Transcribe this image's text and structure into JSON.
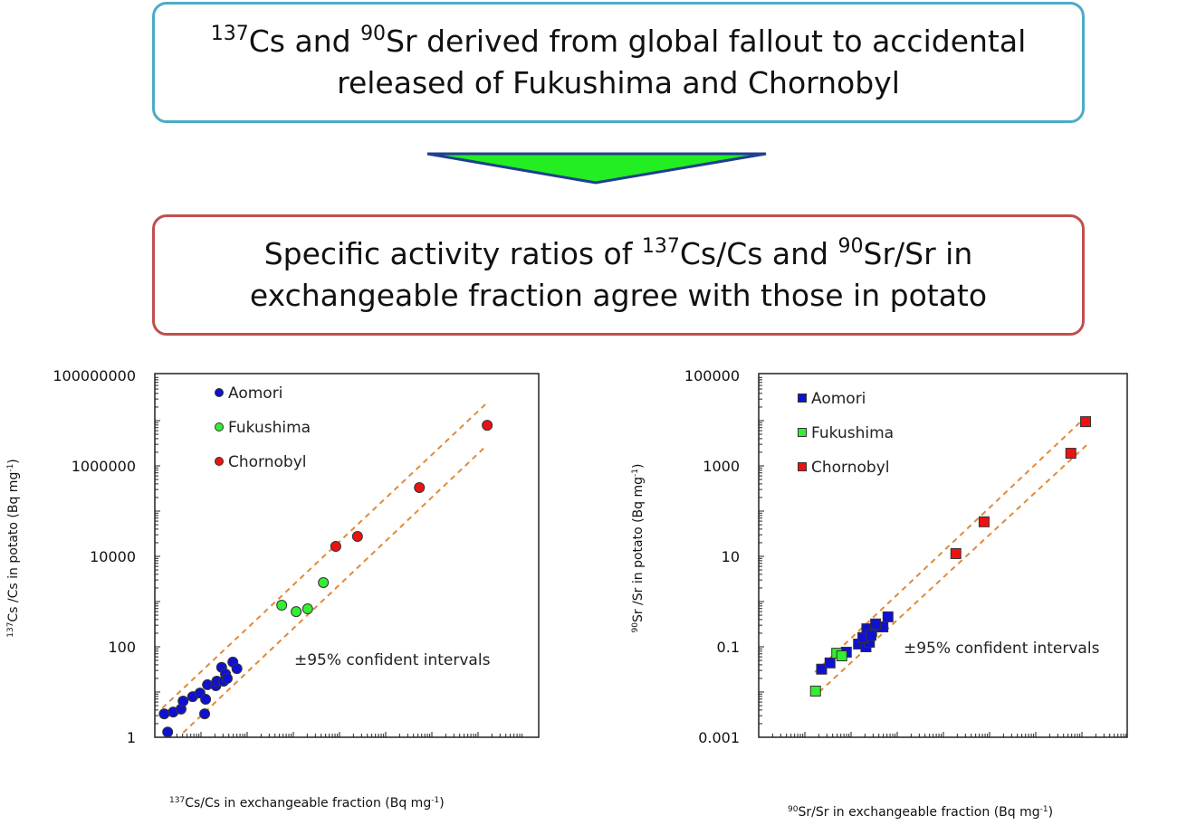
{
  "header_box": {
    "sup1": "137",
    "t1": "Cs and ",
    "sup2": "90",
    "t2": "Sr derived from global fallout to accidental",
    "line2": "released of Fukushima and Chornobyl"
  },
  "result_box": {
    "t1": "Specific activity ratios of ",
    "sup1": "137",
    "t2": "Cs/Cs and ",
    "sup2": "90",
    "t3": "Sr/Sr in",
    "line2": "exchangeable fraction agree with those in potato"
  },
  "colors": {
    "header_border": "#4bacc6",
    "result_border": "#c0504d",
    "arrow_fill": "#22ee22",
    "arrow_stroke": "#1f3f8f",
    "aomori": "#1010d0",
    "fukushima": "#33ee33",
    "chornobyl": "#ee1111",
    "ci_line": "#e08a3c"
  },
  "chart_data": [
    {
      "type": "scatter",
      "marker": "circle",
      "xscale": "log",
      "yscale": "log",
      "xlim": [
        1,
        100000000
      ],
      "ylim": [
        1,
        100000000
      ],
      "x_ticks": [
        "1",
        "100",
        "10000",
        "1000000",
        "100000000"
      ],
      "y_ticks": [
        "1",
        "100",
        "10000",
        "1000000",
        "100000000"
      ],
      "xlabel_sup": "137",
      "xlabel": "Cs/Cs in exchangeable fraction (Bq mg",
      "xlabel_exp": "-1",
      "xlabel_end": ")",
      "ylabel_sup": "137",
      "ylabel": "Cs /Cs in potato (Bq mg",
      "ylabel_exp": "-1",
      "ylabel_end": ")",
      "annotation": "±95% confident intervals",
      "legend_position": "top-left",
      "series": [
        {
          "name": "Aomori",
          "color": "#1010d0",
          "points": [
            [
              1.6,
              3.3
            ],
            [
              2.5,
              3.6
            ],
            [
              3.7,
              4.2
            ],
            [
              4.1,
              6.3
            ],
            [
              6.6,
              7.9
            ],
            [
              9.5,
              9.5
            ],
            [
              12.6,
              6.9
            ],
            [
              12,
              3.3
            ],
            [
              13.8,
              14.5
            ],
            [
              21,
              13.8
            ],
            [
              22,
              17.4
            ],
            [
              31,
              17.4
            ],
            [
              28,
              35
            ],
            [
              34,
              25
            ],
            [
              49,
              46
            ],
            [
              60,
              33
            ],
            [
              1.9,
              1.3
            ],
            [
              37,
              20
            ]
          ]
        },
        {
          "name": "Fukushima",
          "color": "#33ee33",
          "points": [
            [
              560,
              830
            ],
            [
              1150,
              600
            ],
            [
              2040,
              690
            ],
            [
              4470,
              2630
            ]
          ]
        },
        {
          "name": "Chornobyl",
          "color": "#ee1111",
          "points": [
            [
              8300,
              16600
            ],
            [
              24500,
              27500
            ],
            [
              537000,
              331000
            ],
            [
              15800000,
              7900000
            ]
          ]
        }
      ],
      "ci_lines": [
        [
          [
            1.45,
            4.4
          ],
          [
            14500000,
            23000000
          ]
        ],
        [
          [
            4.1,
            1.26
          ],
          [
            15000000,
            2750000
          ]
        ]
      ]
    },
    {
      "type": "scatter",
      "marker": "square",
      "xscale": "log",
      "yscale": "log",
      "xlim": [
        0.001,
        100000
      ],
      "ylim": [
        0.001,
        100000
      ],
      "x_ticks": [
        "0.001",
        "0.1",
        "10",
        "1000",
        "100000"
      ],
      "y_ticks": [
        "0.001",
        "0.1",
        "10",
        "1000",
        "100000"
      ],
      "xlabel_sup": "90",
      "xlabel": "Sr/Sr in exchangeable fraction (Bq mg",
      "xlabel_exp": "-1",
      "xlabel_end": ")",
      "ylabel_sup": "90",
      "ylabel": "Sr /Sr in potato (Bq mg",
      "ylabel_exp": "-1",
      "ylabel_end": ")",
      "annotation": "±95% confident intervals",
      "legend_position": "top-left",
      "series": [
        {
          "name": "Aomori",
          "color": "#1010d0",
          "points": [
            [
              0.023,
              0.032
            ],
            [
              0.035,
              0.044
            ],
            [
              0.079,
              0.076
            ],
            [
              0.145,
              0.115
            ],
            [
              0.21,
              0.1
            ],
            [
              0.25,
              0.126
            ],
            [
              0.18,
              0.16
            ],
            [
              0.28,
              0.22
            ],
            [
              0.22,
              0.25
            ],
            [
              0.39,
              0.275
            ],
            [
              0.49,
              0.275
            ],
            [
              0.63,
              0.46
            ],
            [
              0.34,
              0.32
            ],
            [
              0.27,
              0.18
            ]
          ]
        },
        {
          "name": "Fukushima",
          "color": "#33ee33",
          "points": [
            [
              0.017,
              0.0105
            ],
            [
              0.049,
              0.072
            ],
            [
              0.063,
              0.063
            ]
          ]
        },
        {
          "name": "Chornobyl",
          "color": "#ee1111",
          "points": [
            [
              12000,
              9500
            ],
            [
              5750,
              1900
            ],
            [
              76,
              58
            ],
            [
              18.6,
              11.5
            ]
          ]
        }
      ],
      "ci_lines": [
        [
          [
            0.0166,
            0.0275
          ],
          [
            11500,
            11500
          ]
        ],
        [
          [
            0.0204,
            0.01
          ],
          [
            12600,
            2880
          ]
        ]
      ]
    }
  ]
}
